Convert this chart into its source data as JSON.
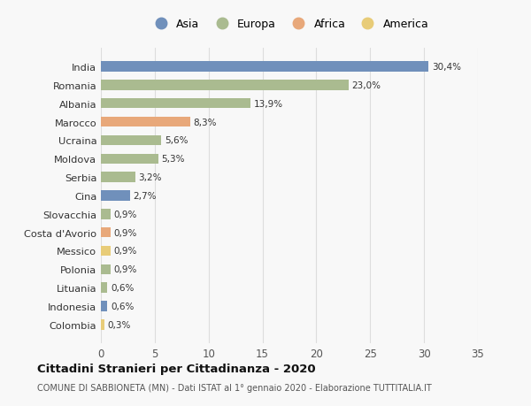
{
  "countries": [
    "India",
    "Romania",
    "Albania",
    "Marocco",
    "Ucraina",
    "Moldova",
    "Serbia",
    "Cina",
    "Slovacchia",
    "Costa d'Avorio",
    "Messico",
    "Polonia",
    "Lituania",
    "Indonesia",
    "Colombia"
  ],
  "values": [
    30.4,
    23.0,
    13.9,
    8.3,
    5.6,
    5.3,
    3.2,
    2.7,
    0.9,
    0.9,
    0.9,
    0.9,
    0.6,
    0.6,
    0.3
  ],
  "continents": [
    "Asia",
    "Europa",
    "Europa",
    "Africa",
    "Europa",
    "Europa",
    "Europa",
    "Asia",
    "Europa",
    "Africa",
    "America",
    "Europa",
    "Europa",
    "Asia",
    "America"
  ],
  "continent_colors": {
    "Asia": "#7090bb",
    "Europa": "#aabb90",
    "Africa": "#e8a87a",
    "America": "#e8cc78"
  },
  "labels": [
    "30,4%",
    "23,0%",
    "13,9%",
    "8,3%",
    "5,6%",
    "5,3%",
    "3,2%",
    "2,7%",
    "0,9%",
    "0,9%",
    "0,9%",
    "0,9%",
    "0,6%",
    "0,6%",
    "0,3%"
  ],
  "xlim": [
    0,
    35
  ],
  "xticks": [
    0,
    5,
    10,
    15,
    20,
    25,
    30,
    35
  ],
  "title": "Cittadini Stranieri per Cittadinanza - 2020",
  "subtitle": "COMUNE DI SABBIONETA (MN) - Dati ISTAT al 1° gennaio 2020 - Elaborazione TUTTITALIA.IT",
  "background_color": "#f8f8f8",
  "grid_color": "#dddddd",
  "bar_height": 0.55,
  "legend_entries": [
    "Asia",
    "Europa",
    "Africa",
    "America"
  ]
}
